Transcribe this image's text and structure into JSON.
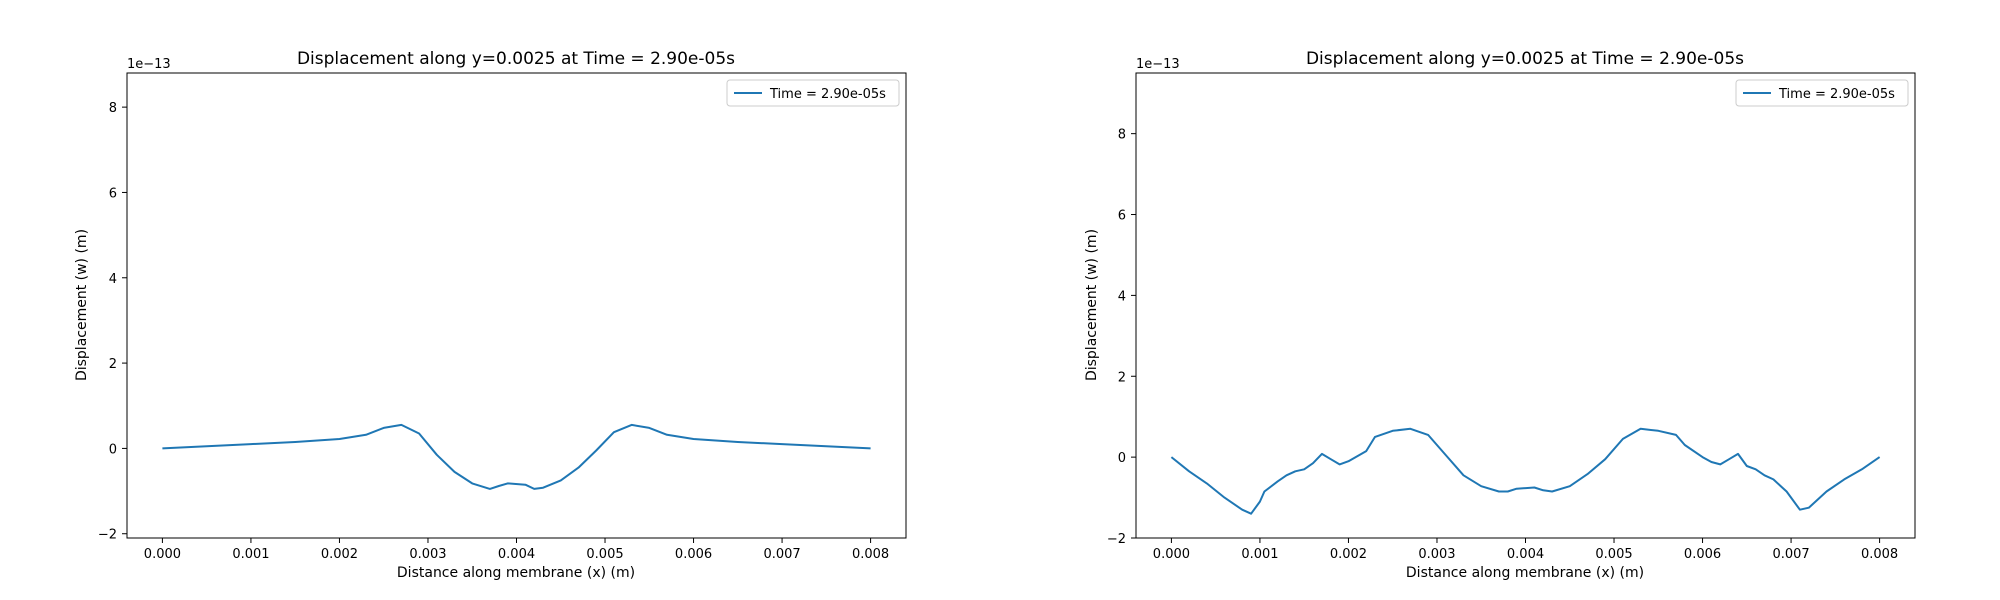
{
  "chart_data": [
    {
      "type": "line",
      "title": "Displacement along y=0.0025 at Time = 2.90e-05s",
      "xlabel": "Distance along membrane (x) (m)",
      "ylabel": "Displacement (w) (m)",
      "y_offset_label": "1e−13",
      "legend_position": "upper right",
      "xlim": [
        -0.0004,
        0.0084
      ],
      "ylim": [
        -2.1,
        8.8
      ],
      "x_ticks": [
        0.0,
        0.001,
        0.002,
        0.003,
        0.004,
        0.005,
        0.006,
        0.007,
        0.008
      ],
      "x_tick_labels": [
        "0.000",
        "0.001",
        "0.002",
        "0.003",
        "0.004",
        "0.005",
        "0.006",
        "0.007",
        "0.008"
      ],
      "y_ticks": [
        -2,
        0,
        2,
        4,
        6,
        8
      ],
      "y_tick_labels": [
        "−2",
        "0",
        "2",
        "4",
        "6",
        "8"
      ],
      "color": "#1f77b4",
      "series": [
        {
          "name": "Time = 2.90e-05s",
          "x": [
            0.0,
            0.0005,
            0.001,
            0.0015,
            0.002,
            0.0023,
            0.0025,
            0.0027,
            0.0029,
            0.0031,
            0.0033,
            0.0035,
            0.0037,
            0.0038,
            0.0039,
            0.0041,
            0.0042,
            0.0043,
            0.0045,
            0.0047,
            0.0049,
            0.0051,
            0.0053,
            0.0055,
            0.0057,
            0.006,
            0.0065,
            0.007,
            0.0075,
            0.008
          ],
          "y": [
            0.0,
            0.05,
            0.1,
            0.15,
            0.22,
            0.32,
            0.48,
            0.55,
            0.35,
            -0.15,
            -0.55,
            -0.82,
            -0.95,
            -0.88,
            -0.82,
            -0.85,
            -0.95,
            -0.92,
            -0.75,
            -0.45,
            -0.05,
            0.38,
            0.55,
            0.48,
            0.32,
            0.22,
            0.15,
            0.1,
            0.05,
            0.0
          ]
        }
      ]
    },
    {
      "type": "line",
      "title": "Displacement along y=0.0025 at Time = 2.90e-05s",
      "xlabel": "Distance along membrane (x) (m)",
      "ylabel": "Displacement (w) (m)",
      "y_offset_label": "1e−13",
      "legend_position": "upper right",
      "xlim": [
        -0.0004,
        0.0084
      ],
      "ylim": [
        -2.0,
        9.5
      ],
      "x_ticks": [
        0.0,
        0.001,
        0.002,
        0.003,
        0.004,
        0.005,
        0.006,
        0.007,
        0.008
      ],
      "x_tick_labels": [
        "0.000",
        "0.001",
        "0.002",
        "0.003",
        "0.004",
        "0.005",
        "0.006",
        "0.007",
        "0.008"
      ],
      "y_ticks": [
        -2,
        0,
        2,
        4,
        6,
        8
      ],
      "y_tick_labels": [
        "−2",
        "0",
        "2",
        "4",
        "6",
        "8"
      ],
      "color": "#1f77b4",
      "series": [
        {
          "name": "Time = 2.90e-05s",
          "x": [
            0.0,
            0.0002,
            0.0004,
            0.0006,
            0.0008,
            0.0009,
            0.001,
            0.00105,
            0.0012,
            0.0013,
            0.0014,
            0.0015,
            0.0016,
            0.0017,
            0.0018,
            0.0019,
            0.002,
            0.0022,
            0.0023,
            0.0025,
            0.0027,
            0.0029,
            0.0031,
            0.0033,
            0.0035,
            0.0037,
            0.0038,
            0.0039,
            0.0041,
            0.0042,
            0.0043,
            0.0045,
            0.0047,
            0.0049,
            0.0051,
            0.0053,
            0.0055,
            0.0057,
            0.0058,
            0.006,
            0.0061,
            0.0062,
            0.0063,
            0.0064,
            0.0065,
            0.0066,
            0.0067,
            0.0068,
            0.0069,
            0.00695,
            0.0071,
            0.0072,
            0.0074,
            0.0076,
            0.0078,
            0.008
          ],
          "y": [
            0.0,
            -0.35,
            -0.65,
            -1.0,
            -1.3,
            -1.4,
            -1.1,
            -0.85,
            -0.6,
            -0.45,
            -0.35,
            -0.3,
            -0.15,
            0.08,
            -0.05,
            -0.18,
            -0.1,
            0.15,
            0.5,
            0.65,
            0.7,
            0.55,
            0.05,
            -0.45,
            -0.72,
            -0.85,
            -0.85,
            -0.78,
            -0.75,
            -0.82,
            -0.85,
            -0.72,
            -0.42,
            -0.05,
            0.45,
            0.7,
            0.65,
            0.55,
            0.3,
            0.0,
            -0.12,
            -0.18,
            -0.05,
            0.08,
            -0.22,
            -0.3,
            -0.45,
            -0.55,
            -0.75,
            -0.85,
            -1.3,
            -1.25,
            -0.85,
            -0.55,
            -0.3,
            0.0
          ]
        }
      ]
    }
  ]
}
